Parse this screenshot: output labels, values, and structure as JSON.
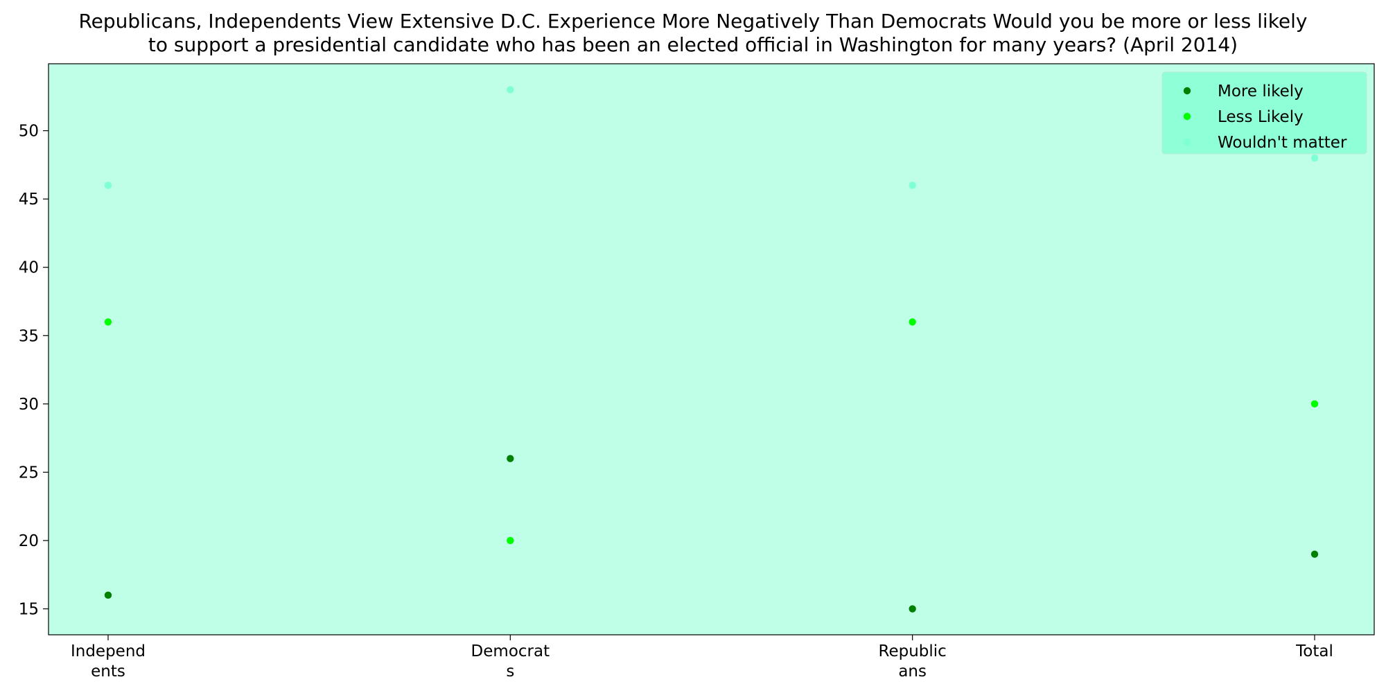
{
  "chart_data": {
    "type": "scatter",
    "title_lines": [
      "Republicans, Independents View Extensive D.C. Experience More Negatively Than Democrats Would you be more or less likely",
      "to support a presidential candidate who has been an elected official in Washington for many years? (April 2014)"
    ],
    "categories": [
      "Independ\nents",
      "Democrat\ns",
      "Republic\nans",
      "Total"
    ],
    "series": [
      {
        "name": "More likely",
        "color": "#008000",
        "values": [
          16,
          26,
          15,
          19
        ]
      },
      {
        "name": "Less Likely",
        "color": "#00ff00",
        "values": [
          36,
          20,
          36,
          30
        ]
      },
      {
        "name": "Wouldn't matter",
        "color": "#7fffd4",
        "values": [
          46,
          53,
          46,
          48
        ]
      }
    ],
    "yticks": [
      15,
      20,
      25,
      30,
      35,
      40,
      45,
      50
    ],
    "ylim": [
      13.1,
      54.9
    ],
    "xlabel": "",
    "ylabel": "",
    "grid": false,
    "legend_position": "top-right",
    "plot_background": "#bfffe8",
    "legend_background": "#8effd6"
  }
}
